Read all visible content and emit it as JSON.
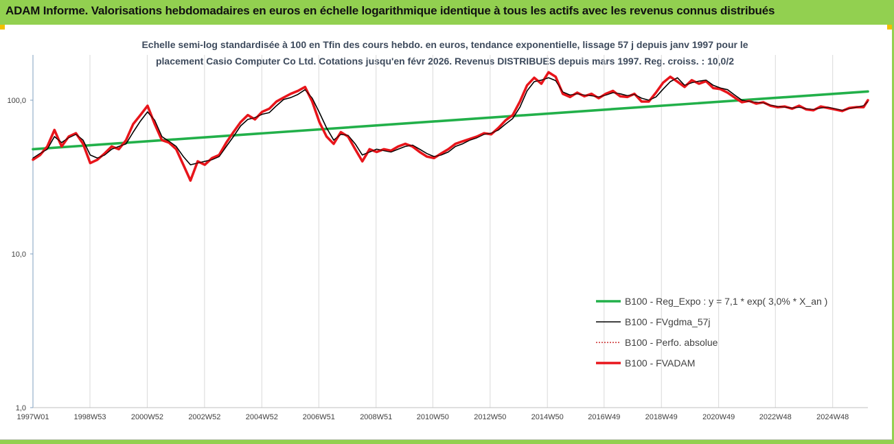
{
  "header": {
    "title": "ADAM Informe. Valorisations hebdomadaires en euros en échelle logarithmique identique à tous les actifs avec les revenus connus distribués"
  },
  "chart_data": {
    "type": "line",
    "title": "Echelle semi-log standardisée à 100 en Tfin des cours hebdo. en euros, tendance exponentielle, lissage 57 j depuis janv 1997 pour le placement Casio Computer Co Ltd. Cotations jusqu'en févr 2026. Revenus DISTRIBUES depuis mars 1997. Reg. croiss. : 10,0/2",
    "title_lines": [
      "Echelle semi-log standardisée à 100 en Tfin des cours hebdo. en euros, tendance exponentielle, lissage 57 j depuis janv 1997 pour le",
      "placement Casio Computer Co Ltd. Cotations jusqu'en févr 2026. Revenus DISTRIBUES depuis mars 1997. Reg. croiss. : 10,0/2"
    ],
    "y_scale": "log",
    "ylim": [
      1,
      200
    ],
    "y_ticks": [
      {
        "value": 1,
        "label": "1,0"
      },
      {
        "value": 10,
        "label": "10,0"
      },
      {
        "value": 100,
        "label": "100,0"
      }
    ],
    "x_range": [
      1997.0,
      2026.15
    ],
    "x_ticks": [
      {
        "x": 1997.0,
        "label": "1997W01"
      },
      {
        "x": 1998.99,
        "label": "1998W53"
      },
      {
        "x": 2000.99,
        "label": "2000W52"
      },
      {
        "x": 2002.99,
        "label": "2002W52"
      },
      {
        "x": 2004.99,
        "label": "2004W52"
      },
      {
        "x": 2006.98,
        "label": "2006W51"
      },
      {
        "x": 2008.98,
        "label": "2008W51"
      },
      {
        "x": 2010.96,
        "label": "2010W50"
      },
      {
        "x": 2012.96,
        "label": "2012W50"
      },
      {
        "x": 2014.96,
        "label": "2014W50"
      },
      {
        "x": 2016.94,
        "label": "2016W49"
      },
      {
        "x": 2018.94,
        "label": "2018W49"
      },
      {
        "x": 2020.94,
        "label": "2020W49"
      },
      {
        "x": 2022.92,
        "label": "2022W48"
      },
      {
        "x": 2024.92,
        "label": "2024W48"
      }
    ],
    "grid": "vertical",
    "legend_position": "bottom-right",
    "series": [
      {
        "name": "B100 - Reg_Expo : y = 7,1 * exp( 3,0% *  X_an )",
        "color": "#22b04a",
        "style": "thick",
        "x": [
          1997.0,
          2026.15
        ],
        "y": [
          48,
          114
        ]
      },
      {
        "name": "B100 - FVgdma_57j",
        "color": "#000000",
        "style": "thin",
        "x": [
          1997.0,
          1997.25,
          1997.5,
          1997.75,
          1998.0,
          1998.25,
          1998.5,
          1998.75,
          1999.0,
          1999.25,
          1999.5,
          1999.75,
          2000.0,
          2000.25,
          2000.5,
          2000.75,
          2001.0,
          2001.25,
          2001.5,
          2001.75,
          2002.0,
          2002.25,
          2002.5,
          2002.75,
          2003.0,
          2003.25,
          2003.5,
          2003.75,
          2004.0,
          2004.25,
          2004.5,
          2004.75,
          2005.0,
          2005.25,
          2005.5,
          2005.75,
          2006.0,
          2006.25,
          2006.5,
          2006.75,
          2007.0,
          2007.25,
          2007.5,
          2007.75,
          2008.0,
          2008.25,
          2008.5,
          2008.75,
          2009.0,
          2009.25,
          2009.5,
          2009.75,
          2010.0,
          2010.25,
          2010.5,
          2010.75,
          2011.0,
          2011.25,
          2011.5,
          2011.75,
          2012.0,
          2012.25,
          2012.5,
          2012.75,
          2013.0,
          2013.25,
          2013.5,
          2013.75,
          2014.0,
          2014.25,
          2014.5,
          2014.75,
          2015.0,
          2015.25,
          2015.5,
          2015.75,
          2016.0,
          2016.25,
          2016.5,
          2016.75,
          2017.0,
          2017.25,
          2017.5,
          2017.75,
          2018.0,
          2018.25,
          2018.5,
          2018.75,
          2019.0,
          2019.25,
          2019.5,
          2019.75,
          2020.0,
          2020.25,
          2020.5,
          2020.75,
          2021.0,
          2021.25,
          2021.5,
          2021.75,
          2022.0,
          2022.25,
          2022.5,
          2022.75,
          2023.0,
          2023.25,
          2023.5,
          2023.75,
          2024.0,
          2024.25,
          2024.5,
          2024.75,
          2025.0,
          2025.25,
          2025.5,
          2025.75,
          2026.0,
          2026.15
        ],
        "y": [
          42,
          45,
          48,
          58,
          53,
          57,
          60,
          55,
          44,
          42,
          44,
          48,
          50,
          52,
          62,
          73,
          84,
          74,
          58,
          54,
          50,
          43,
          38,
          39,
          40,
          41,
          43,
          50,
          58,
          68,
          75,
          77,
          81,
          83,
          92,
          101,
          104,
          109,
          117,
          103,
          83,
          66,
          55,
          60,
          59,
          52,
          44,
          46,
          48,
          47,
          46,
          48,
          50,
          51,
          48,
          45,
          43,
          44,
          46,
          50,
          52,
          55,
          57,
          60,
          61,
          64,
          70,
          76,
          90,
          115,
          132,
          135,
          140,
          134,
          113,
          108,
          110,
          108,
          107,
          105,
          108,
          112,
          110,
          107,
          109,
          103,
          100,
          105,
          118,
          132,
          140,
          125,
          130,
          133,
          135,
          125,
          120,
          117,
          108,
          100,
          98,
          97,
          96,
          93,
          91,
          90,
          89,
          90,
          88,
          87,
          89,
          90,
          88,
          86,
          88,
          90,
          92,
          98
        ]
      },
      {
        "name": "B100 - Perfo. absolue",
        "color": "#c00000",
        "style": "dotted",
        "x": [],
        "y": []
      },
      {
        "name": "B100 - FVADAM",
        "color": "#e8151b",
        "style": "thick",
        "x": [
          1997.0,
          1997.25,
          1997.5,
          1997.75,
          1998.0,
          1998.25,
          1998.5,
          1998.75,
          1999.0,
          1999.25,
          1999.5,
          1999.75,
          2000.0,
          2000.25,
          2000.5,
          2000.75,
          2001.0,
          2001.25,
          2001.5,
          2001.75,
          2002.0,
          2002.25,
          2002.5,
          2002.75,
          2003.0,
          2003.25,
          2003.5,
          2003.75,
          2004.0,
          2004.25,
          2004.5,
          2004.75,
          2005.0,
          2005.25,
          2005.5,
          2005.75,
          2006.0,
          2006.25,
          2006.5,
          2006.75,
          2007.0,
          2007.25,
          2007.5,
          2007.75,
          2008.0,
          2008.25,
          2008.5,
          2008.75,
          2009.0,
          2009.25,
          2009.5,
          2009.75,
          2010.0,
          2010.25,
          2010.5,
          2010.75,
          2011.0,
          2011.25,
          2011.5,
          2011.75,
          2012.0,
          2012.25,
          2012.5,
          2012.75,
          2013.0,
          2013.25,
          2013.5,
          2013.75,
          2014.0,
          2014.25,
          2014.5,
          2014.75,
          2015.0,
          2015.25,
          2015.5,
          2015.75,
          2016.0,
          2016.25,
          2016.5,
          2016.75,
          2017.0,
          2017.25,
          2017.5,
          2017.75,
          2018.0,
          2018.25,
          2018.5,
          2018.75,
          2019.0,
          2019.25,
          2019.5,
          2019.75,
          2020.0,
          2020.25,
          2020.5,
          2020.75,
          2021.0,
          2021.25,
          2021.5,
          2021.75,
          2022.0,
          2022.25,
          2022.5,
          2022.75,
          2023.0,
          2023.25,
          2023.5,
          2023.75,
          2024.0,
          2024.25,
          2024.5,
          2024.75,
          2025.0,
          2025.25,
          2025.5,
          2025.75,
          2026.0,
          2026.15
        ],
        "y": [
          41,
          44,
          50,
          64,
          50,
          58,
          61,
          52,
          39,
          41,
          45,
          50,
          48,
          55,
          70,
          80,
          92,
          70,
          55,
          53,
          48,
          38,
          30,
          40,
          38,
          42,
          44,
          53,
          62,
          72,
          80,
          75,
          84,
          88,
          98,
          104,
          110,
          115,
          122,
          98,
          72,
          58,
          52,
          62,
          58,
          48,
          40,
          48,
          46,
          48,
          47,
          50,
          52,
          50,
          46,
          43,
          42,
          45,
          48,
          52,
          54,
          56,
          58,
          61,
          60,
          66,
          74,
          80,
          98,
          125,
          140,
          128,
          152,
          142,
          110,
          105,
          112,
          106,
          110,
          103,
          110,
          115,
          106,
          105,
          110,
          98,
          98,
          112,
          130,
          142,
          132,
          122,
          135,
          128,
          133,
          120,
          118,
          112,
          104,
          97,
          99,
          95,
          97,
          92,
          90,
          91,
          88,
          92,
          87,
          86,
          91,
          89,
          87,
          85,
          89,
          90,
          90,
          100
        ]
      }
    ]
  }
}
